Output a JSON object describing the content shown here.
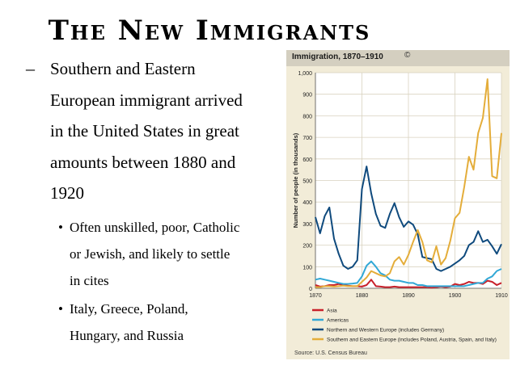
{
  "slide": {
    "title": "The New Immigrants",
    "bullet_main": {
      "marker": "–",
      "lines": [
        "Southern and Eastern",
        "European immigrant arrived",
        "in the United States in great",
        "amounts between 1880 and",
        "1920"
      ]
    },
    "sub_bullets": [
      {
        "marker": "•",
        "lines": [
          "Often unskilled, poor, Catholic",
          "or Jewish, and likely to settle",
          "in cites"
        ]
      },
      {
        "marker": "•",
        "lines": [
          "Italy, Greece, Poland,",
          "Hungary, and Russia"
        ]
      }
    ]
  },
  "chart_header": {
    "title": "Immigration, 1870–1910",
    "copyright": "©"
  },
  "source_text": "Source: U.S. Census Bureau",
  "chart_data": {
    "type": "line",
    "title": "Immigration, 1870–1910",
    "ylabel": "Number of people (in thousands)",
    "xlabel": "",
    "xlim": [
      1870,
      1910
    ],
    "ylim": [
      0,
      1000
    ],
    "xticks": [
      1870,
      1880,
      1890,
      1900,
      1910
    ],
    "yticks": [
      0,
      100,
      200,
      300,
      400,
      500,
      600,
      700,
      800,
      900,
      1000
    ],
    "ytick_labels": [
      "0",
      "100",
      "200",
      "300",
      "400",
      "500",
      "600",
      "700",
      "800",
      "900",
      "1,000"
    ],
    "grid": true,
    "legend_position": "bottom",
    "x": [
      1870,
      1871,
      1872,
      1873,
      1874,
      1875,
      1876,
      1877,
      1878,
      1879,
      1880,
      1881,
      1882,
      1883,
      1884,
      1885,
      1886,
      1887,
      1888,
      1889,
      1890,
      1891,
      1892,
      1893,
      1894,
      1895,
      1896,
      1897,
      1898,
      1899,
      1900,
      1901,
      1902,
      1903,
      1904,
      1905,
      1906,
      1907,
      1908,
      1909,
      1910
    ],
    "series": [
      {
        "name": "Asia",
        "color": "#c8202a",
        "values": [
          15,
          8,
          10,
          15,
          15,
          20,
          15,
          12,
          10,
          10,
          8,
          15,
          40,
          10,
          8,
          5,
          5,
          8,
          5,
          5,
          5,
          5,
          5,
          5,
          5,
          3,
          5,
          8,
          5,
          8,
          20,
          15,
          20,
          30,
          25,
          25,
          20,
          35,
          30,
          15,
          25
        ]
      },
      {
        "name": "Americas",
        "color": "#31a8d6",
        "values": [
          40,
          45,
          40,
          35,
          30,
          25,
          20,
          20,
          22,
          25,
          55,
          105,
          125,
          100,
          70,
          60,
          40,
          35,
          35,
          30,
          25,
          25,
          15,
          15,
          10,
          10,
          10,
          10,
          10,
          10,
          10,
          10,
          10,
          15,
          20,
          25,
          25,
          45,
          55,
          80,
          90
        ]
      },
      {
        "name": "Northern and Western Europe (includes Germany)",
        "color": "#0f4a7d",
        "values": [
          330,
          255,
          335,
          375,
          230,
          160,
          105,
          90,
          100,
          130,
          460,
          565,
          440,
          345,
          290,
          280,
          345,
          395,
          330,
          285,
          310,
          295,
          250,
          145,
          140,
          135,
          90,
          80,
          90,
          100,
          115,
          130,
          150,
          200,
          215,
          265,
          215,
          225,
          195,
          160,
          205
        ]
      },
      {
        "name": "Southern and Eastern Europe (includes Poland, Austria, Spain, and Italy)",
        "color": "#e4ad3a",
        "values": [
          5,
          5,
          10,
          10,
          8,
          10,
          12,
          10,
          10,
          10,
          30,
          50,
          80,
          70,
          60,
          55,
          70,
          125,
          145,
          110,
          155,
          215,
          270,
          215,
          130,
          120,
          195,
          110,
          140,
          220,
          325,
          350,
          470,
          610,
          550,
          720,
          790,
          970,
          520,
          510,
          720
        ]
      }
    ]
  }
}
